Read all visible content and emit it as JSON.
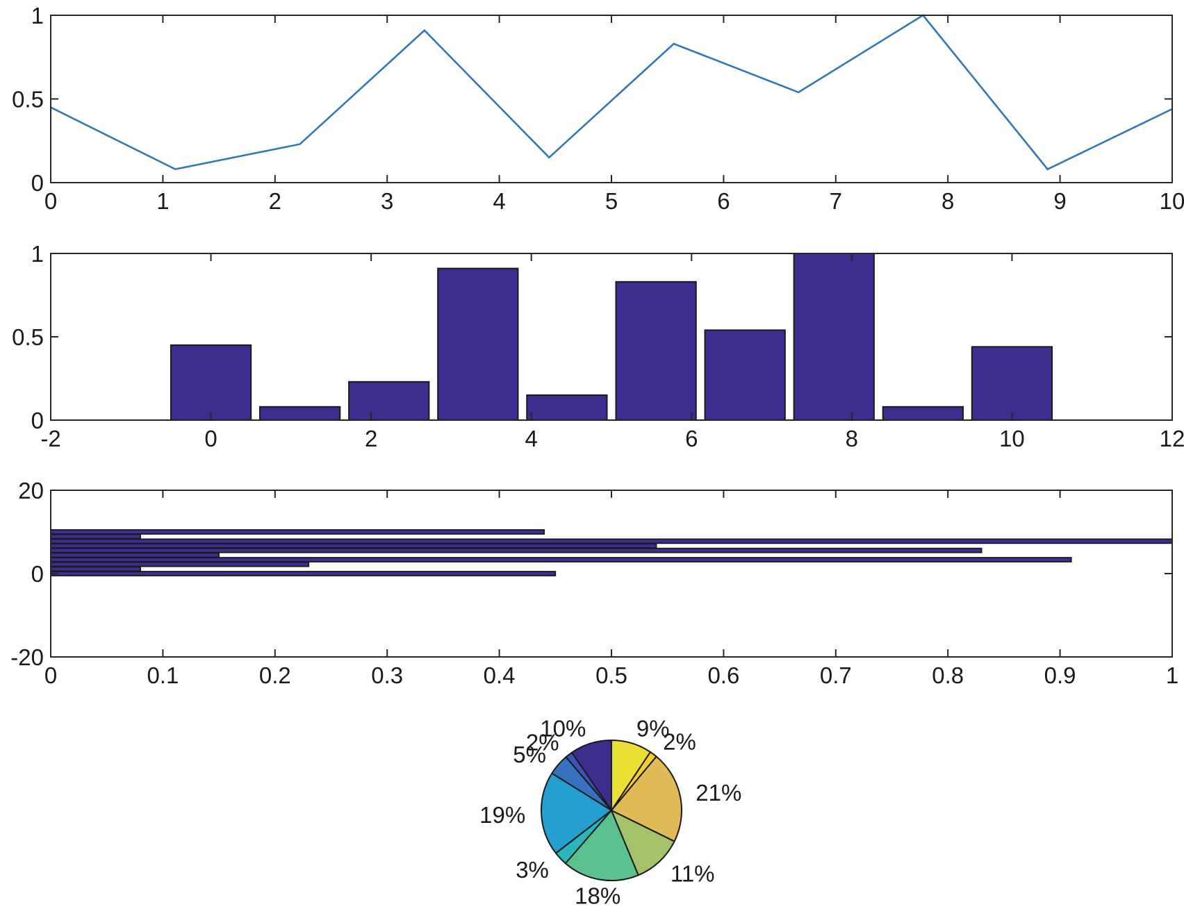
{
  "colors": {
    "line": "#2f77b8",
    "bar_fill": "#3f2d8e",
    "edge": "#1a1a1a",
    "axis": "#262626",
    "pie": [
      "#3f2d8e",
      "#3c55b5",
      "#3672c0",
      "#249fd0",
      "#2db5bd",
      "#5ac08d",
      "#a4c26a",
      "#e0bb55",
      "#f5cc32",
      "#e9e033"
    ]
  },
  "chart_data": [
    {
      "type": "line",
      "title": "",
      "xlabel": "",
      "ylabel": "",
      "x": [
        0,
        1.111,
        2.222,
        3.333,
        4.444,
        5.556,
        6.667,
        7.778,
        8.889,
        10
      ],
      "y": [
        0.45,
        0.08,
        0.23,
        0.91,
        0.15,
        0.83,
        0.54,
        1.0,
        0.08,
        0.44
      ],
      "xlim": [
        0,
        10
      ],
      "ylim": [
        0,
        1
      ],
      "xticks": [
        0,
        1,
        2,
        3,
        4,
        5,
        6,
        7,
        8,
        9,
        10
      ],
      "xtick_labels": [
        "0",
        "1",
        "2",
        "3",
        "4",
        "5",
        "6",
        "7",
        "8",
        "9",
        "10"
      ],
      "yticks": [
        0,
        0.5,
        1
      ],
      "ytick_labels": [
        "0",
        "0.5",
        "1"
      ]
    },
    {
      "type": "bar",
      "title": "",
      "xlabel": "",
      "ylabel": "",
      "x": [
        0,
        1.111,
        2.222,
        3.333,
        4.444,
        5.556,
        6.667,
        7.778,
        8.889,
        10
      ],
      "values": [
        0.45,
        0.08,
        0.23,
        0.91,
        0.15,
        0.83,
        0.54,
        1.0,
        0.08,
        0.44
      ],
      "bar_width": 0.9,
      "xlim": [
        -2,
        12
      ],
      "ylim": [
        0,
        1
      ],
      "xticks": [
        -2,
        0,
        2,
        4,
        6,
        8,
        10,
        12
      ],
      "xtick_labels": [
        "-2",
        "0",
        "2",
        "4",
        "6",
        "8",
        "10",
        "12"
      ],
      "yticks": [
        0,
        0.5,
        1
      ],
      "ytick_labels": [
        "0",
        "0.5",
        "1"
      ]
    },
    {
      "type": "barh",
      "title": "",
      "xlabel": "",
      "ylabel": "",
      "y": [
        0,
        1.111,
        2.222,
        3.333,
        4.444,
        5.556,
        6.667,
        7.778,
        8.889,
        10
      ],
      "values": [
        0.45,
        0.08,
        0.23,
        0.91,
        0.15,
        0.83,
        0.54,
        1.0,
        0.08,
        0.44
      ],
      "bar_width": 0.9,
      "xlim": [
        0,
        1
      ],
      "ylim": [
        -20,
        20
      ],
      "xticks": [
        0,
        0.1,
        0.2,
        0.3,
        0.4,
        0.5,
        0.6,
        0.7,
        0.8,
        0.9,
        1
      ],
      "xtick_labels": [
        "0",
        "0.1",
        "0.2",
        "0.3",
        "0.4",
        "0.5",
        "0.6",
        "0.7",
        "0.8",
        "0.9",
        "1"
      ],
      "yticks": [
        -20,
        0,
        20
      ],
      "ytick_labels": [
        "-20",
        "0",
        "20"
      ]
    },
    {
      "type": "pie",
      "title": "",
      "values": [
        0.45,
        0.08,
        0.23,
        0.91,
        0.15,
        0.83,
        0.54,
        1.0,
        0.08,
        0.44
      ],
      "labels": [
        "10%",
        "2%",
        "5%",
        "19%",
        "3%",
        "18%",
        "11%",
        "21%",
        "2%",
        "9%"
      ],
      "direction": "counterclockwise",
      "start": "top"
    }
  ]
}
